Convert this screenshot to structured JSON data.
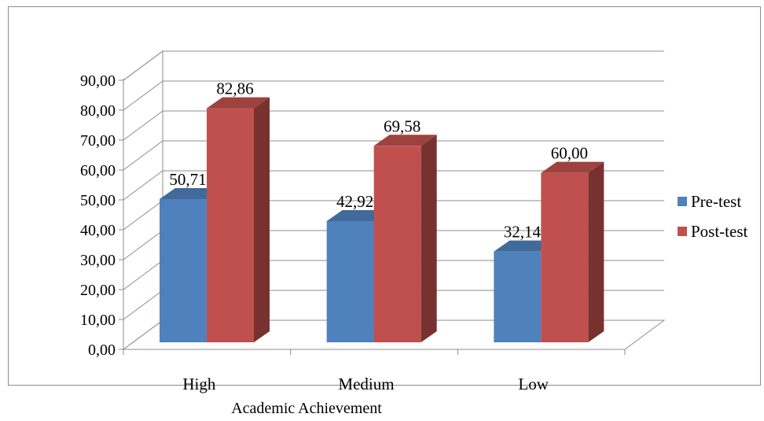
{
  "chart_data": {
    "type": "bar",
    "categories": [
      "High",
      "Medium",
      "Low"
    ],
    "series": [
      {
        "name": "Pre-test",
        "values": [
          50.71,
          42.92,
          32.14
        ],
        "labels": [
          "50,71",
          "42,92",
          "32,14"
        ],
        "color": "#4f81bd"
      },
      {
        "name": "Post-test",
        "values": [
          82.86,
          69.58,
          60.0
        ],
        "labels": [
          "82,86",
          "69,58",
          "60,00"
        ],
        "color": "#c0504d"
      }
    ],
    "y_ticks": [
      "0,00",
      "10,00",
      "20,00",
      "30,00",
      "40,00",
      "50,00",
      "60,00",
      "70,00",
      "80,00",
      "90,00"
    ],
    "ylim": [
      0,
      90
    ],
    "grid": true,
    "legend": "right",
    "xlabel": "Academic Achievement",
    "ylabel": "",
    "title": ""
  }
}
